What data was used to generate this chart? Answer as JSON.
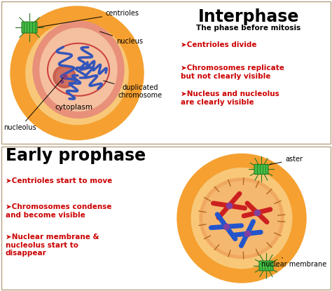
{
  "bg_color": "#ffffff",
  "border_color": "#b8a080",
  "panel1": {
    "title": "Interphase",
    "subtitle": "The phase before mitosis",
    "bullets": [
      "➤Centrioles divide",
      "➤Chromosomes replicate\nbut not clearly visible",
      "➤Nucleus and nucleolus\nare clearly visible"
    ],
    "cell_color": "#f5a030",
    "cell_inner_color": "#f8c878",
    "nucleus_outer_color": "#e8907a",
    "nucleus_inner_color": "#f5c0a0",
    "cytoplasm_label": "cytoplasm",
    "nucleus_label": "nucleus",
    "centrioles_label": "centrioles",
    "nucleolus_label": "nucleolus",
    "chromosome_label": "duplicated\nchromosome"
  },
  "panel2": {
    "title": "Early prophase",
    "bullets": [
      "➤Centrioles start to move",
      "➤Chromosomes condense\nand become visible",
      "➤Nuclear membrane &\nnucleolus start to\ndisappear"
    ],
    "cell_color": "#f5a030",
    "cell_inner_color": "#f8c878",
    "nucleus_color": "#f0a870",
    "aster_label": "aster",
    "nuclear_membrane_label": "nuclear membrane"
  }
}
